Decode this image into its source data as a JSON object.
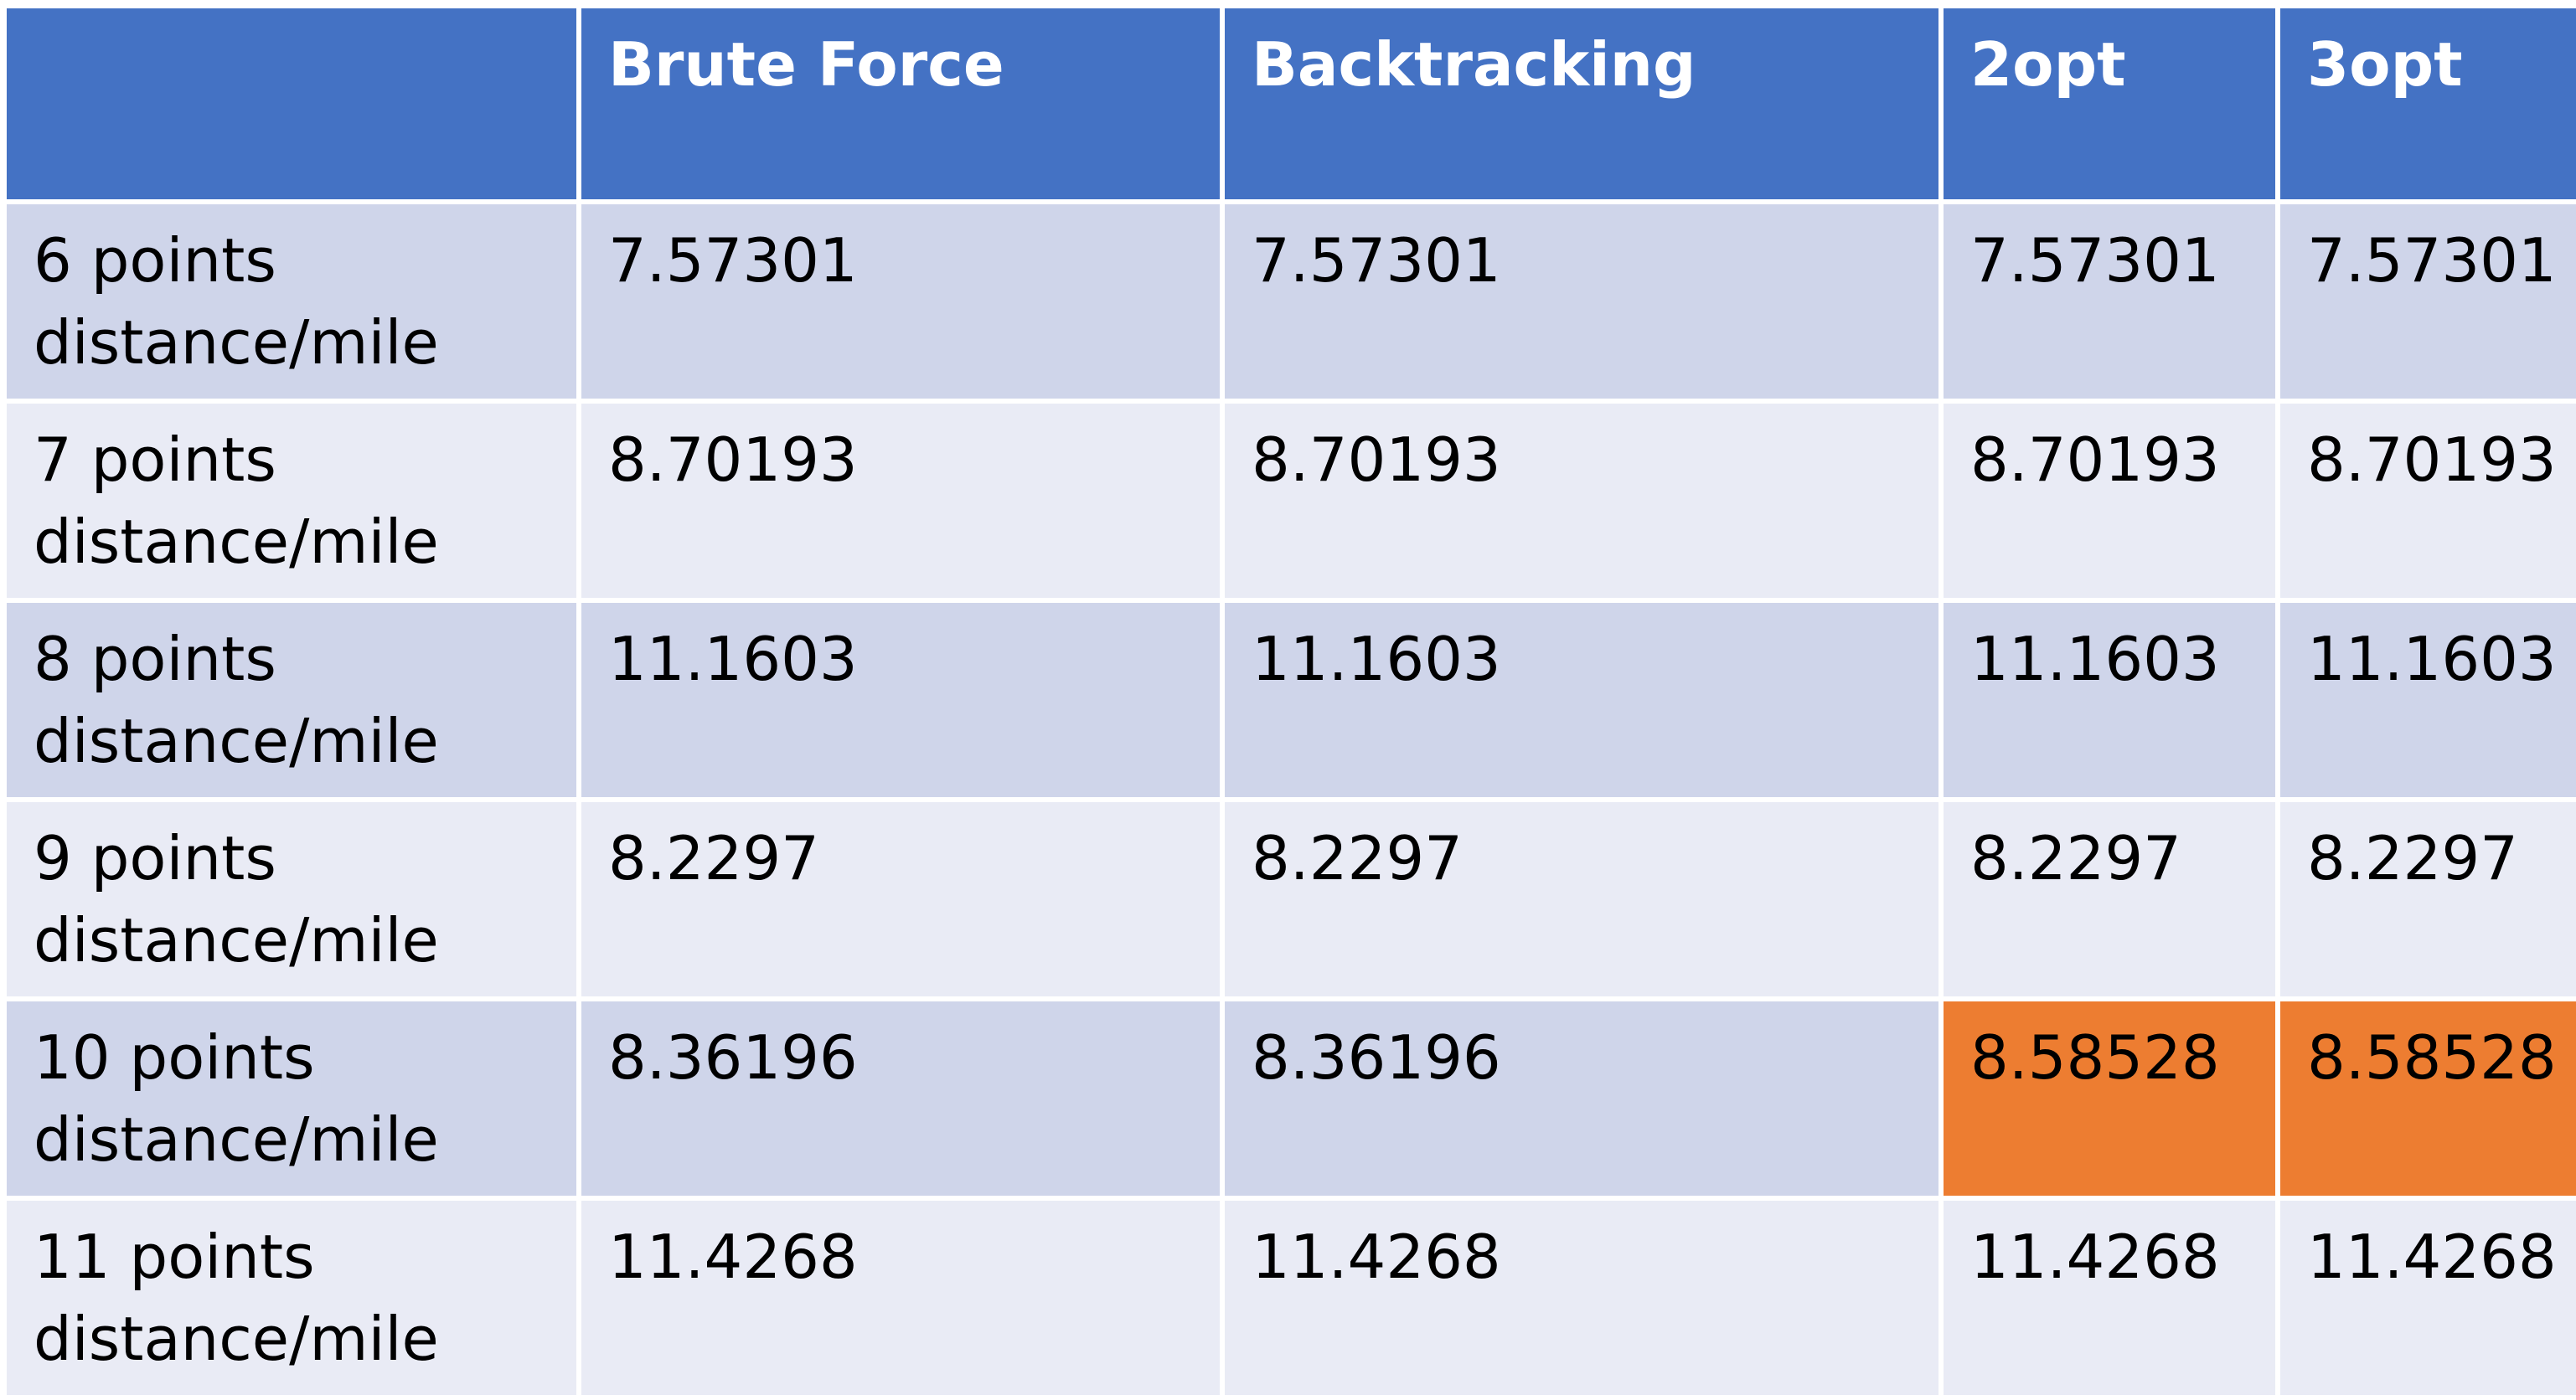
{
  "chart_data": {
    "type": "table",
    "columns": [
      "",
      "Brute Force",
      "Backtracking",
      "2opt",
      "3opt"
    ],
    "rows": [
      {
        "label_line1": "6 points",
        "label_line2": "distance/mile",
        "values": [
          "7.57301",
          "7.57301",
          "7.57301",
          "7.57301"
        ]
      },
      {
        "label_line1": "7 points",
        "label_line2": "distance/mile",
        "values": [
          "8.70193",
          "8.70193",
          "8.70193",
          "8.70193"
        ]
      },
      {
        "label_line1": "8 points",
        "label_line2": "distance/mile",
        "values": [
          "11.1603",
          "11.1603",
          "11.1603",
          "11.1603"
        ]
      },
      {
        "label_line1": "9 points",
        "label_line2": "distance/mile",
        "values": [
          "8.2297",
          "8.2297",
          "8.2297",
          "8.2297"
        ]
      },
      {
        "label_line1": "10 points",
        "label_line2": "distance/mile",
        "values": [
          "8.36196",
          "8.36196",
          "8.58528",
          "8.58528"
        ]
      },
      {
        "label_line1": "11 points",
        "label_line2": "distance/mile",
        "values": [
          "11.4268",
          "11.4268",
          "11.4268",
          "11.4268"
        ]
      }
    ],
    "highlighted_cells": [
      {
        "row": 4,
        "col": 2
      },
      {
        "row": 4,
        "col": 3
      }
    ],
    "colors": {
      "header": "#4472c4",
      "row_band_dark": "#cfd5ea",
      "row_band_light": "#e9ebf5",
      "highlight": "#ed7d31"
    }
  }
}
